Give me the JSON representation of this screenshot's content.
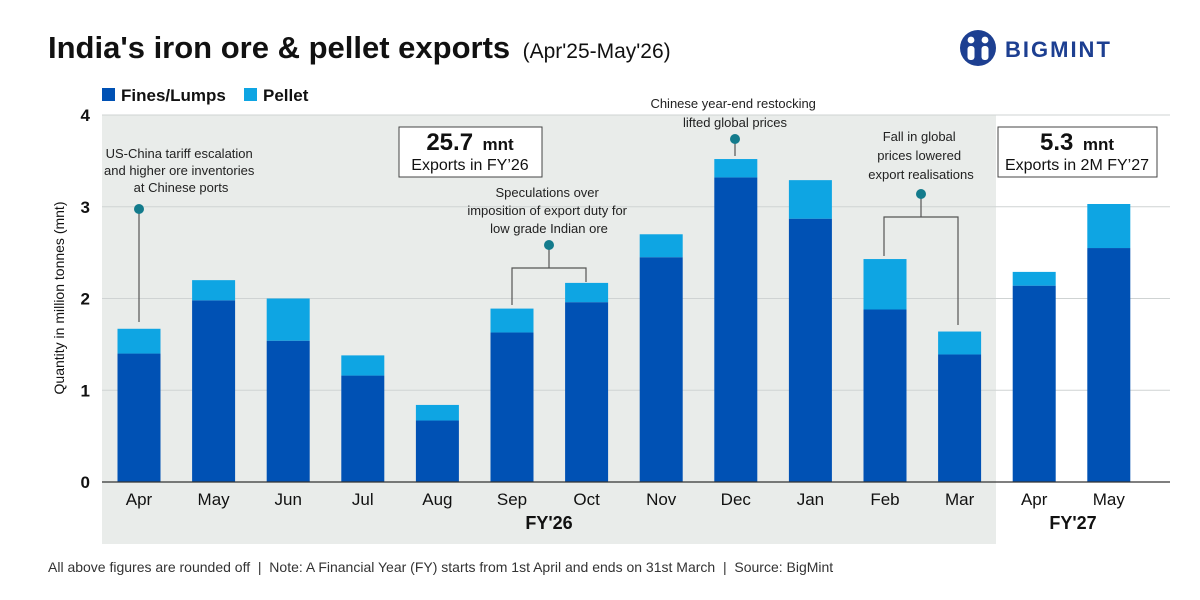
{
  "title": "India's iron ore & pellet exports",
  "subtitle": "(Apr'25-May'26)",
  "brand": "BIGMINT",
  "colors": {
    "fines": "#0051b4",
    "pellet": "#0ea5e3",
    "fy26_bg": "#e9ecea",
    "grid": "#cfd3d3",
    "marker": "#137b8c",
    "connector": "#555555"
  },
  "legend": [
    {
      "label": "Fines/Lumps",
      "color": "#0051b4"
    },
    {
      "label": "Pellet",
      "color": "#0ea5e3"
    }
  ],
  "summary_boxes": [
    {
      "value": "25.7",
      "unit": "mnt",
      "label": "Exports in FY’26"
    },
    {
      "value": "5.3",
      "unit": "mnt",
      "label": "Exports in 2M FY’27"
    }
  ],
  "annotations": [
    {
      "lines": [
        "US-China tariff escalation",
        "and higher ore inventories",
        "at Chinese ports"
      ]
    },
    {
      "lines": [
        "Speculations over",
        "imposition of export duty for",
        "low grade Indian ore"
      ]
    },
    {
      "lines": [
        "Chinese year-end restocking",
        "lifted global prices"
      ]
    },
    {
      "lines": [
        "Fall in global",
        "prices lowered",
        "export realisations"
      ]
    }
  ],
  "chart_data": {
    "type": "bar",
    "stacked": true,
    "categories": [
      "Apr",
      "May",
      "Jun",
      "Jul",
      "Aug",
      "Sep",
      "Oct",
      "Nov",
      "Dec",
      "Jan",
      "Feb",
      "Mar",
      "Apr",
      "May"
    ],
    "series": [
      {
        "name": "Fines/Lumps",
        "values": [
          1.4,
          1.98,
          1.54,
          1.16,
          0.67,
          1.63,
          1.96,
          2.45,
          3.32,
          2.87,
          1.88,
          1.39,
          2.14,
          2.55
        ]
      },
      {
        "name": "Pellet",
        "values": [
          0.27,
          0.22,
          0.46,
          0.22,
          0.17,
          0.26,
          0.21,
          0.25,
          0.2,
          0.42,
          0.55,
          0.25,
          0.15,
          0.48
        ]
      }
    ],
    "ylabel": "Quantity in million tonnes (mnt)",
    "ylim": [
      0,
      4
    ],
    "yticks": [
      0,
      1,
      2,
      3,
      4
    ],
    "grid": true,
    "legend_position": "top-left",
    "groups": [
      {
        "label": "FY'26",
        "months": 12
      },
      {
        "label": "FY'27",
        "months": 2
      }
    ]
  },
  "footer": "All above figures are rounded off  |  Note: A Financial Year (FY) starts from 1st April and ends on 31st March  |  Source: BigMint"
}
